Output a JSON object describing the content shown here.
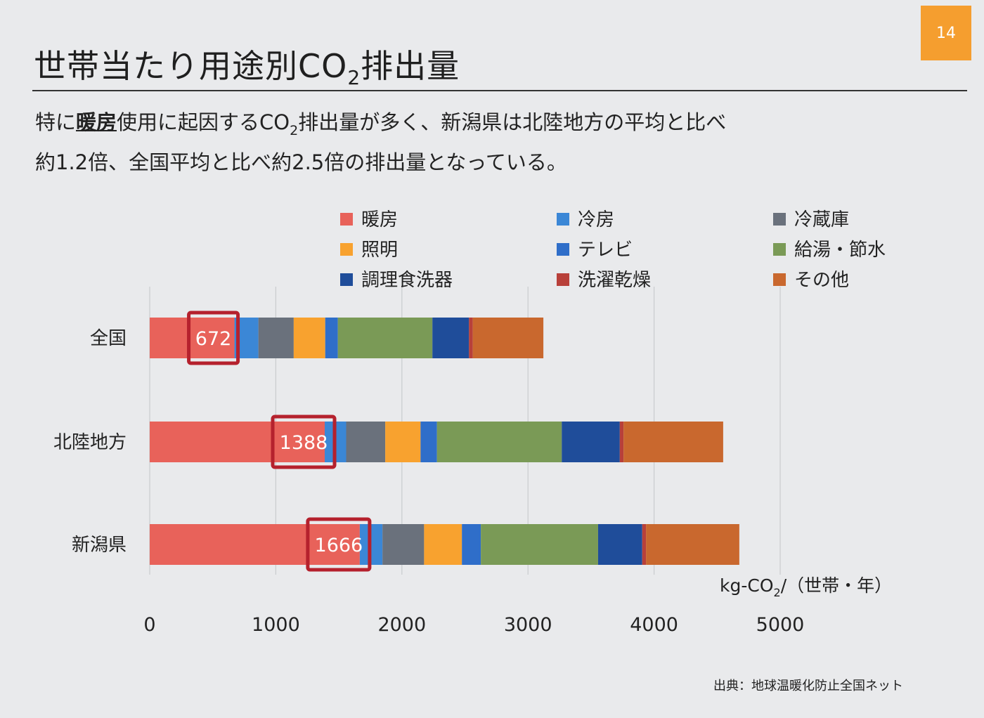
{
  "page_number": "14",
  "title": {
    "main": "世帯当たり用途別CO",
    "sub": "2",
    "rest": "排出量"
  },
  "description": {
    "line1_prefix": "特に",
    "line1_emph": "暖房",
    "line1_mid": "使用に起因するCO",
    "line1_sub": "2",
    "line1_rest": "排出量が多く、新潟県は北陸地方の平均と比べ",
    "line2": "約1.2倍、全国平均と比べ約2.5倍の排出量となっている。"
  },
  "source": "出典：地球温暖化防止全国ネット",
  "colors": {
    "暖房": "#e8625a",
    "冷房": "#3b87d6",
    "冷蔵庫": "#6a717c",
    "照明": "#f8a22f",
    "テレビ": "#2f6ec9",
    "給湯・節水": "#7a9a56",
    "調理食洗器": "#1f4d9a",
    "洗濯乾燥": "#b8403a",
    "その他": "#c9682e"
  },
  "chart_data": {
    "type": "bar",
    "orientation": "horizontal",
    "stacked": true,
    "categories": [
      "全国",
      "北陸地方",
      "新潟県"
    ],
    "series": [
      {
        "name": "暖房",
        "values": [
          672,
          1388,
          1666
        ]
      },
      {
        "name": "冷房",
        "values": [
          190,
          170,
          180
        ]
      },
      {
        "name": "冷蔵庫",
        "values": [
          280,
          310,
          330
        ]
      },
      {
        "name": "照明",
        "values": [
          250,
          280,
          300
        ]
      },
      {
        "name": "テレビ",
        "values": [
          100,
          130,
          150
        ]
      },
      {
        "name": "給湯・節水",
        "values": [
          750,
          990,
          930
        ]
      },
      {
        "name": "調理食洗器",
        "values": [
          290,
          460,
          350
        ]
      },
      {
        "name": "洗濯乾燥",
        "values": [
          30,
          30,
          30
        ]
      },
      {
        "name": "その他",
        "values": [
          560,
          790,
          740
        ]
      }
    ],
    "highlight_labels": [
      "672",
      "1388",
      "1666"
    ],
    "legend_rows": [
      [
        "暖房",
        "冷房",
        "冷蔵庫"
      ],
      [
        "照明",
        "テレビ",
        "給湯・節水"
      ],
      [
        "調理食洗器",
        "洗濯乾燥",
        "その他"
      ]
    ],
    "legend_position": "top",
    "xlim": [
      0,
      5000
    ],
    "xticks": [
      "0",
      "1000",
      "2000",
      "3000",
      "4000",
      "5000"
    ],
    "grid": true,
    "unit": {
      "main": "kg-CO",
      "sub": "2",
      "rest": "/（世帯・年）"
    }
  }
}
